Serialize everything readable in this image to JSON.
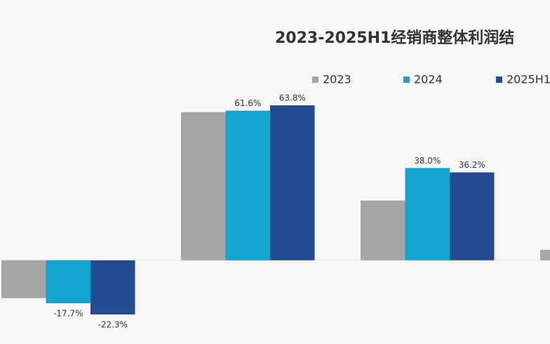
{
  "chart_data": {
    "type": "bar",
    "title": "2023-2025H1经销商整体利润结",
    "categories": [
      null,
      null,
      null,
      null
    ],
    "series": [
      {
        "name": "2023",
        "color": "#a5a5a5",
        "values": [
          -15.6,
          61.0,
          24.6,
          4.3
        ]
      },
      {
        "name": "2024",
        "color": "#13a4d0",
        "values": [
          -17.7,
          61.6,
          38.0,
          null
        ],
        "value_labels": [
          "-17.7%",
          "61.6%",
          "38.0%",
          null
        ]
      },
      {
        "name": "2025H1",
        "color": "#234b92",
        "values": [
          -22.3,
          63.8,
          36.2,
          null
        ],
        "value_labels": [
          "-22.3%",
          "63.8%",
          "36.2%",
          null
        ]
      }
    ],
    "ylim": [
      -34,
      80
    ]
  }
}
